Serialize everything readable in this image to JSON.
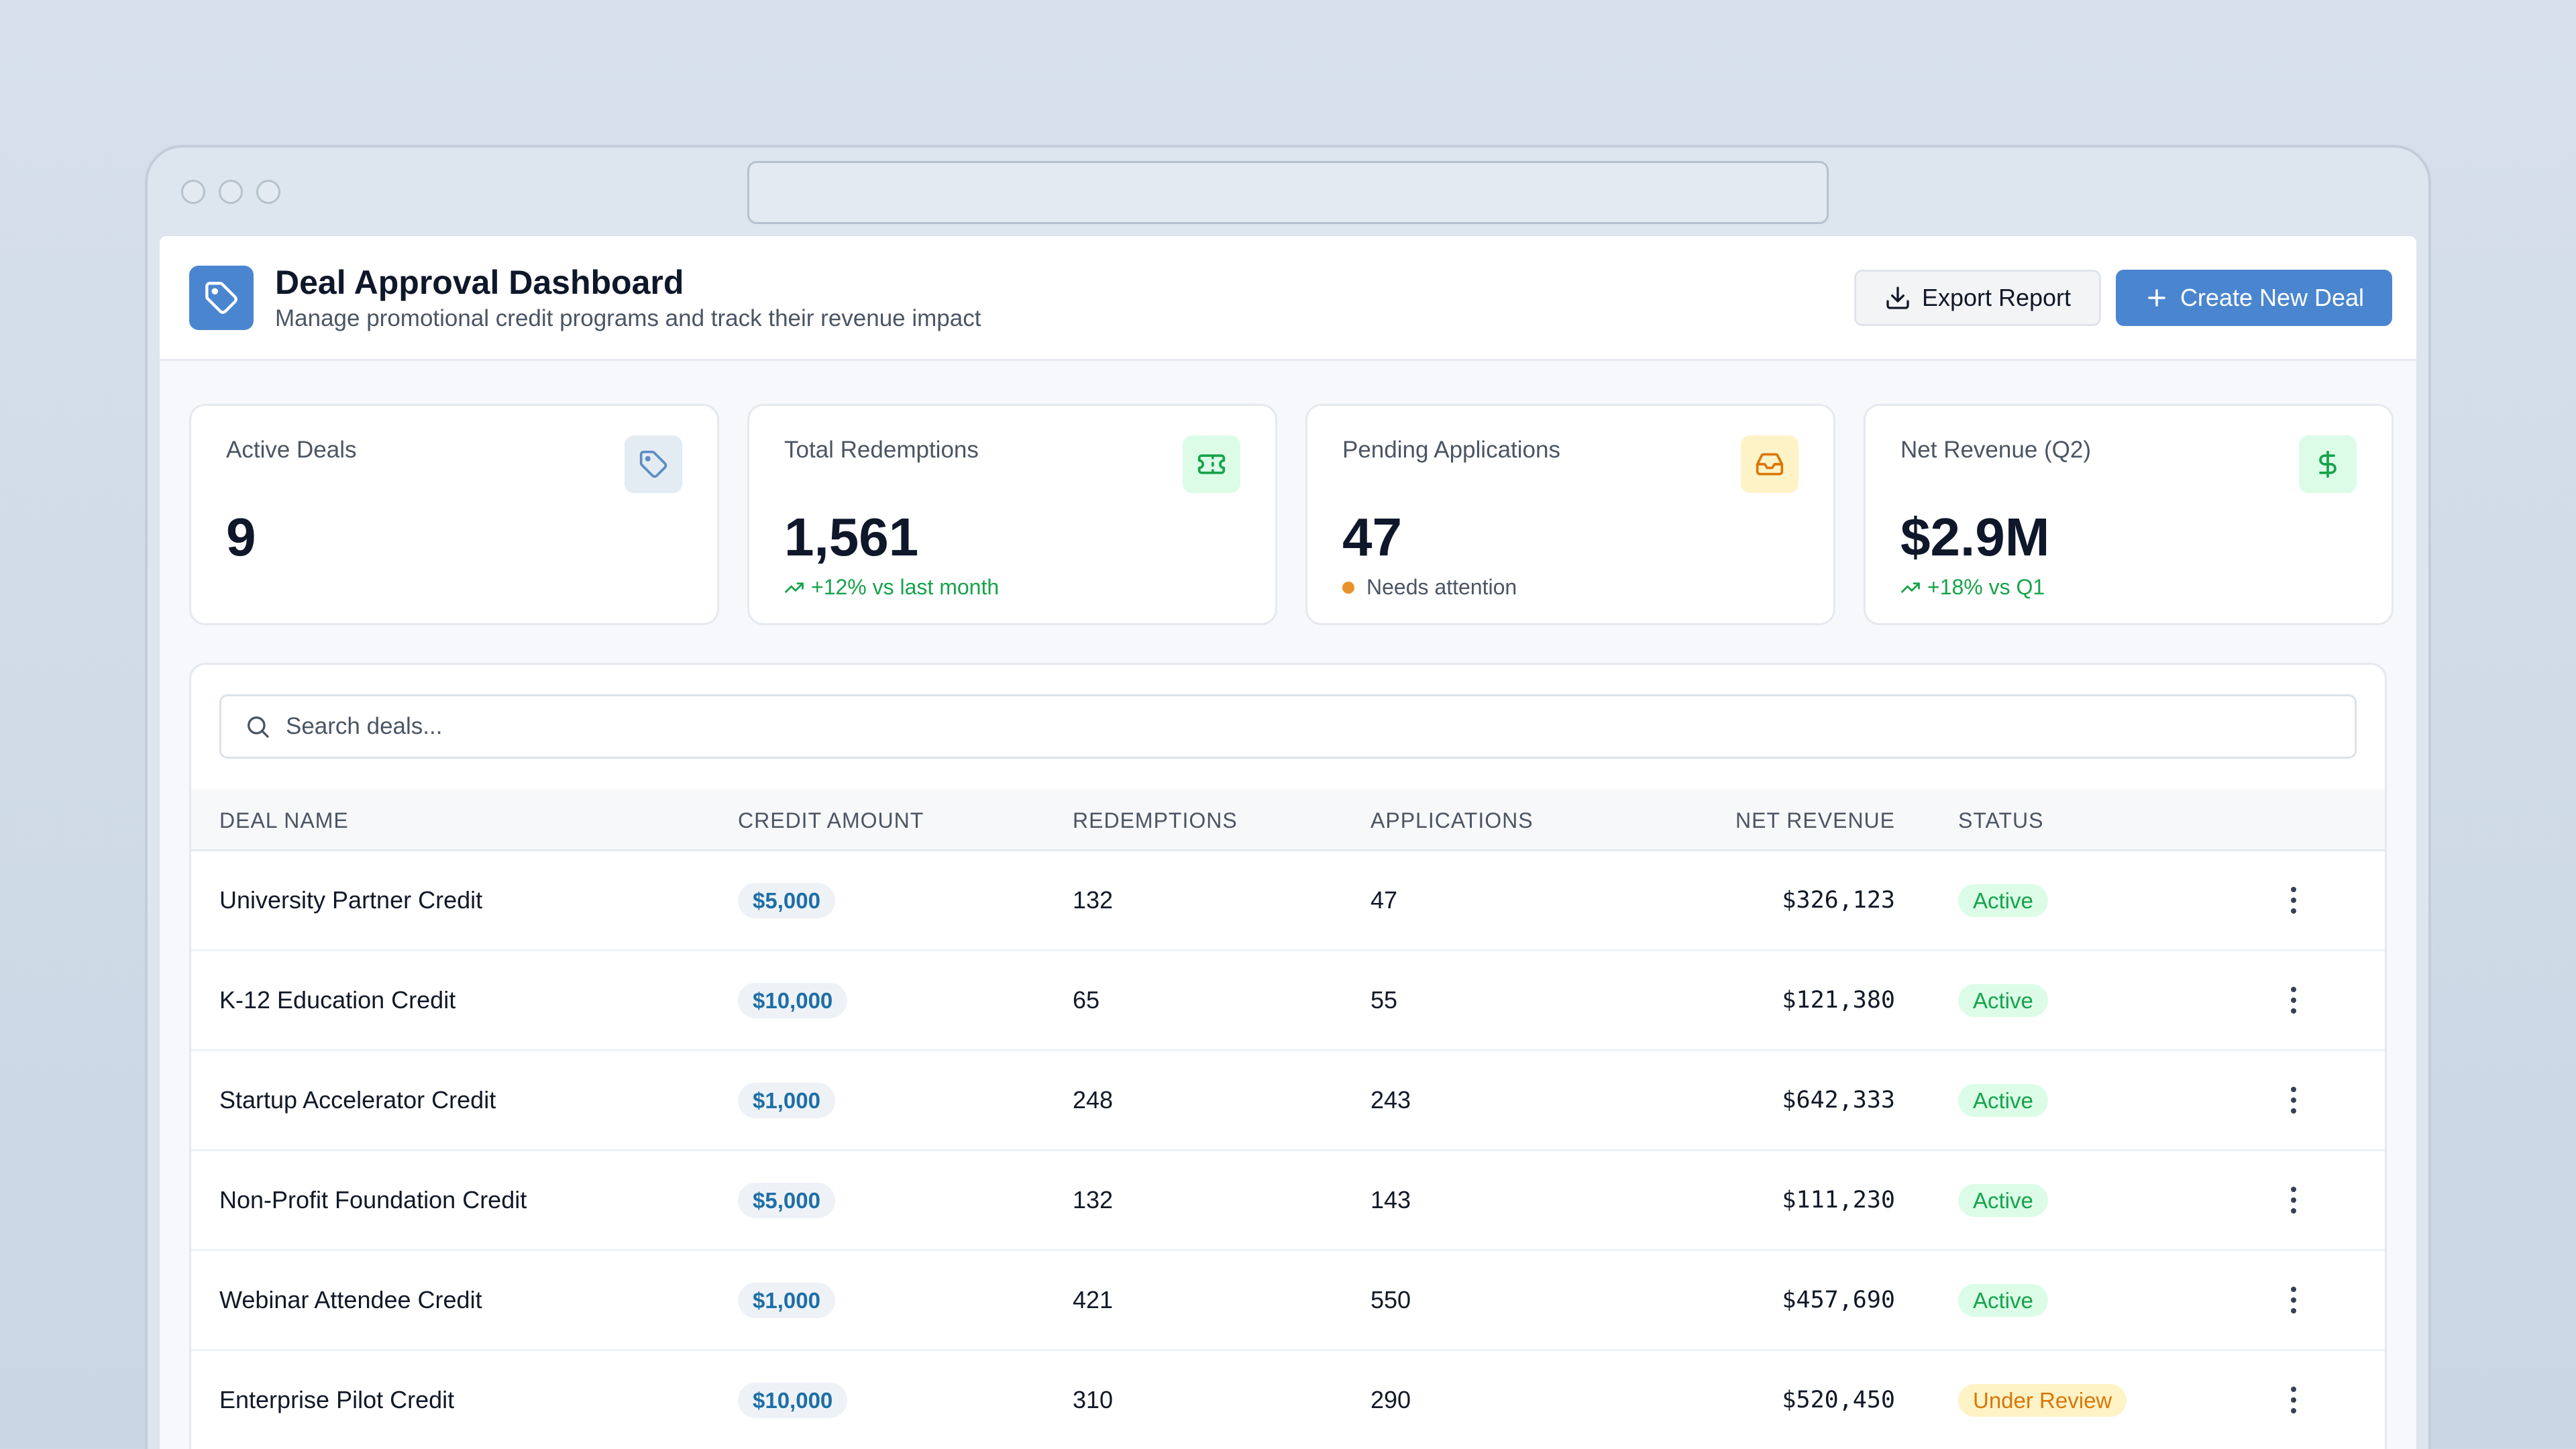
{
  "header": {
    "title": "Deal Approval Dashboard",
    "subtitle": "Manage promotional credit programs and track their revenue impact",
    "export_label": "Export Report",
    "create_label": "Create New Deal",
    "logo_icon": "tag-icon"
  },
  "stats": [
    {
      "label": "Active Deals",
      "value": "9",
      "icon": "tag-icon",
      "icon_bg": "#e3ebf3",
      "icon_color": "#5b8cc4",
      "note": ""
    },
    {
      "label": "Total Redemptions",
      "value": "1,561",
      "icon": "ticket-icon",
      "icon_bg": "#dcfce7",
      "icon_color": "#16a34a",
      "note": "+12% vs last month"
    },
    {
      "label": "Pending Applications",
      "value": "47",
      "icon": "inbox-icon",
      "icon_bg": "#fef3c7",
      "icon_color": "#d97706",
      "note": "Needs attention"
    },
    {
      "label": "Net Revenue (Q2)",
      "value": "$2.9M",
      "icon": "dollar-icon",
      "icon_bg": "#dcfce7",
      "icon_color": "#16a34a",
      "note": "+18% vs Q1"
    }
  ],
  "search": {
    "placeholder": "Search deals..."
  },
  "table": {
    "columns": {
      "deal_name": "DEAL NAME",
      "credit_amount": "CREDIT AMOUNT",
      "redemptions": "REDEMPTIONS",
      "applications": "APPLICATIONS",
      "net_revenue": "NET REVENUE",
      "status": "STATUS"
    },
    "rows": [
      {
        "name": "University Partner Credit",
        "credit": "$5,000",
        "redemptions": "132",
        "applications": "47",
        "revenue": "$326,123",
        "status": "Active"
      },
      {
        "name": "K-12 Education Credit",
        "credit": "$10,000",
        "redemptions": "65",
        "applications": "55",
        "revenue": "$121,380",
        "status": "Active"
      },
      {
        "name": "Startup Accelerator Credit",
        "credit": "$1,000",
        "redemptions": "248",
        "applications": "243",
        "revenue": "$642,333",
        "status": "Active"
      },
      {
        "name": "Non-Profit Foundation Credit",
        "credit": "$5,000",
        "redemptions": "132",
        "applications": "143",
        "revenue": "$111,230",
        "status": "Active"
      },
      {
        "name": "Webinar Attendee Credit",
        "credit": "$1,000",
        "redemptions": "421",
        "applications": "550",
        "revenue": "$457,690",
        "status": "Active"
      },
      {
        "name": "Enterprise Pilot Credit",
        "credit": "$10,000",
        "redemptions": "310",
        "applications": "290",
        "revenue": "$520,450",
        "status": "Under Review"
      }
    ]
  },
  "colors": {
    "accent": "#4a86d0",
    "active": "#16a34a",
    "review": "#d97706"
  }
}
